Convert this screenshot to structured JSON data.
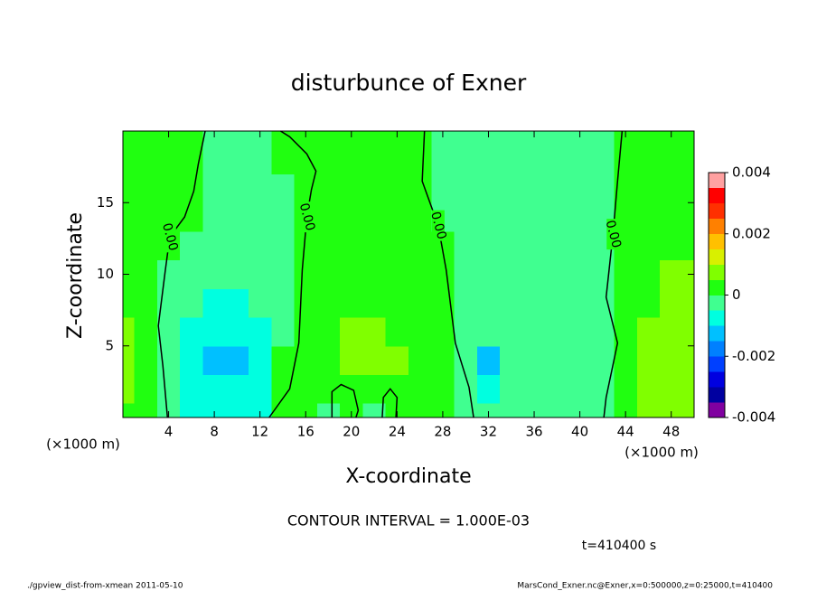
{
  "chart_data": {
    "type": "contour",
    "title": "disturbunce of Exner",
    "xlabel": "X-coordinate",
    "ylabel": "Z-coordinate",
    "unit_label": "(×1000 m)",
    "xlim": [
      0,
      50
    ],
    "ylim": [
      0,
      20
    ],
    "xticks": [
      4,
      8,
      12,
      16,
      20,
      24,
      28,
      32,
      36,
      40,
      44,
      48
    ],
    "yticks": [
      5,
      10,
      15
    ],
    "clim": [
      -0.004,
      0.004
    ],
    "cticks": [
      0.004,
      0.002,
      0,
      -0.002,
      -0.004
    ],
    "levels": [
      -0.004,
      -0.0035,
      -0.003,
      -0.0025,
      -0.002,
      -0.0015,
      -0.001,
      -0.0005,
      0,
      0.0005,
      0.001,
      0.0015,
      0.002,
      0.0025,
      0.003,
      0.0035,
      0.004
    ],
    "colors": [
      "#8000a0",
      "#0000a0",
      "#0000e0",
      "#0040ff",
      "#0080ff",
      "#00c0ff",
      "#00ffe0",
      "#40ff90",
      "#20ff10",
      "#80ff00",
      "#d8f000",
      "#ffc000",
      "#ff8000",
      "#ff3000",
      "#ff0000",
      "#ffa0a0"
    ],
    "field": {
      "x": [
        0,
        2,
        4,
        6,
        8,
        10,
        12,
        14,
        16,
        18,
        20,
        22,
        24,
        26,
        28,
        30,
        32,
        34,
        36,
        38,
        40,
        42,
        44,
        46,
        48,
        50
      ],
      "z": [
        0,
        2,
        4,
        6,
        8,
        10,
        12,
        14,
        16,
        18,
        20
      ],
      "values": [
        [
          0.0003,
          0.0004,
          -0.0001,
          -0.0006,
          -0.0008,
          -0.0008,
          -0.0006,
          0.0001,
          0.0002,
          -0.0001,
          0.0002,
          -0.0001,
          0.0002,
          0.0002,
          0.0001,
          -0.0001,
          -0.0002,
          -0.0002,
          -0.0002,
          -0.0002,
          -0.0002,
          -0.0001,
          0.0003,
          0.0006,
          0.0006,
          0.0005
        ],
        [
          0.0006,
          0.0004,
          -0.0001,
          -0.0008,
          -0.001,
          -0.0009,
          -0.0006,
          0.0001,
          0.0002,
          0.0003,
          0.0003,
          0.0004,
          0.0003,
          0.0002,
          0.0001,
          -0.0002,
          -0.0006,
          -0.0002,
          -0.0002,
          -0.0002,
          -0.0002,
          -0.0001,
          0.0003,
          0.0006,
          0.0006,
          0.0005
        ],
        [
          0.0006,
          0.0004,
          -0.0001,
          -0.0008,
          -0.0012,
          -0.0011,
          -0.0007,
          0.0001,
          0.0002,
          0.0004,
          0.0007,
          0.0007,
          0.0005,
          0.0002,
          0.0001,
          -0.0002,
          -0.0011,
          -0.0003,
          -0.0002,
          -0.0002,
          -0.0002,
          -0.0001,
          0.0003,
          0.0006,
          0.0006,
          0.0005
        ],
        [
          0.0005,
          0.0003,
          -0.0001,
          -0.0008,
          -0.0009,
          -0.0008,
          -0.0006,
          -0.0002,
          0.0002,
          0.0004,
          0.0007,
          0.0006,
          0.0003,
          0.0002,
          0.0001,
          -0.0002,
          -0.0002,
          -0.0002,
          -0.0002,
          -0.0002,
          -0.0002,
          -0.0001,
          0.0003,
          0.0006,
          0.0006,
          0.0005
        ],
        [
          0.0003,
          0.0002,
          -0.0001,
          -0.0004,
          -0.0006,
          -0.0006,
          -0.0004,
          -0.0002,
          0.0002,
          0.0002,
          0.0003,
          0.0002,
          0.0002,
          0.0002,
          0.0001,
          -0.0001,
          -0.0002,
          -0.0002,
          -0.0002,
          -0.0002,
          -0.0002,
          -0.0001,
          0.0002,
          0.0004,
          0.0006,
          0.0006
        ],
        [
          0.0003,
          0.0002,
          -0.0001,
          -0.0002,
          -0.0002,
          -0.0002,
          -0.0002,
          -0.0002,
          0.0002,
          0.0002,
          0.0002,
          0.0002,
          0.0002,
          0.0002,
          0.0001,
          -0.0002,
          -0.0002,
          -0.0002,
          -0.0002,
          -0.0002,
          -0.0002,
          -0.0001,
          0.0002,
          0.0003,
          0.0006,
          0.0005
        ],
        [
          0.0003,
          0.0002,
          0.0001,
          -0.0001,
          -0.0002,
          -0.0002,
          -0.0002,
          -0.0002,
          0.0002,
          0.0002,
          0.0002,
          0.0002,
          0.0002,
          0.0002,
          0.0001,
          -0.0002,
          -0.0002,
          -0.0002,
          -0.0002,
          -0.0002,
          -0.0002,
          -0.0001,
          0.0002,
          0.0002,
          0.0003,
          0.0003
        ],
        [
          0.0003,
          0.0002,
          0.0001,
          0,
          -0.0002,
          -0.0002,
          -0.0002,
          -0.0002,
          0.0002,
          0.0002,
          0.0002,
          0.0002,
          0.0002,
          0.0002,
          -0.0001,
          -0.0002,
          -0.0002,
          -0.0002,
          -0.0002,
          -0.0002,
          -0.0002,
          -0.0001,
          0.0002,
          0.0002,
          0.0002,
          0.0002
        ],
        [
          0.0003,
          0.0002,
          0.0001,
          0.0001,
          -0.0002,
          -0.0002,
          -0.0002,
          -0.0002,
          0.0002,
          0.0002,
          0.0002,
          0.0002,
          0.0002,
          0.0002,
          -0.0001,
          -0.0002,
          -0.0002,
          -0.0002,
          -0.0002,
          -0.0002,
          -0.0002,
          -0.0001,
          0.0002,
          0.0002,
          0.0002,
          0.0002
        ],
        [
          0.0003,
          0.0002,
          0.0001,
          0.0001,
          -0.0002,
          -0.0002,
          -0.0002,
          0.0001,
          0.0002,
          0.0002,
          0.0002,
          0.0002,
          0.0002,
          0.0001,
          -0.0001,
          -0.0002,
          -0.0002,
          -0.0002,
          -0.0002,
          -0.0002,
          -0.0002,
          -0.0001,
          0.0002,
          0.0002,
          0.0002,
          0.0002
        ],
        [
          0.0003,
          0.0002,
          0.0001,
          0.0001,
          -0.0002,
          -0.0002,
          -0.0002,
          0.0001,
          0.0002,
          0.0002,
          0.0002,
          0.0002,
          0.0002,
          0.0001,
          -0.0001,
          -0.0002,
          -0.0002,
          -0.0002,
          -0.0002,
          -0.0002,
          -0.0002,
          -0.0001,
          0.0002,
          0.0002,
          0.0002,
          0.0002
        ]
      ]
    },
    "contours": [
      {
        "level": 0,
        "label": "0.00",
        "x": [
          3.9,
          3.5,
          3.1,
          3.7,
          4.1,
          5.4,
          6.2,
          6.6,
          7.2
        ],
        "z": [
          0,
          3.6,
          6.4,
          10.2,
          12.6,
          14,
          15.8,
          17.7,
          20
        ]
      },
      {
        "level": 0,
        "label": "0.00",
        "x": [
          12.8,
          14.6,
          15.4,
          15.7,
          16.1,
          16.5,
          16.9,
          16.1,
          14.6,
          13.8
        ],
        "z": [
          0,
          2,
          5.2,
          10.3,
          14,
          15.9,
          17.2,
          18.4,
          19.6,
          20
        ]
      },
      {
        "level": 0,
        "label": "0.00",
        "x": [
          26.4,
          26.2,
          27.6,
          28.3,
          29.1,
          30.3,
          30.7
        ],
        "z": [
          20,
          16.5,
          13.4,
          10.3,
          5.2,
          2.1,
          0
        ]
      },
      {
        "level": 0,
        "label": "0.00",
        "x": [
          43.7,
          43.3,
          42.9,
          42.3,
          43.3,
          42.3,
          42.1
        ],
        "z": [
          20,
          16.5,
          12.8,
          8.4,
          5.2,
          1.4,
          0
        ]
      },
      {
        "level": 0,
        "x": [
          18.3,
          18.3,
          19.1,
          20.2,
          20.6,
          20.4
        ],
        "z": [
          0,
          1.8,
          2.3,
          1.9,
          0.5,
          0
        ]
      },
      {
        "level": 0,
        "x": [
          22.7,
          22.8,
          23.4,
          24.0,
          23.9
        ],
        "z": [
          0,
          1.4,
          2.0,
          1.4,
          0
        ]
      }
    ],
    "contour_interval_text": "CONTOUR INTERVAL = 1.000E-03",
    "time_text": "t=410400 s",
    "footer_left": "./gpview_dist-from-xmean  2011-05-10",
    "footer_right": "MarsCond_Exner.nc@Exner,x=0:500000,z=0:25000,t=410400"
  }
}
